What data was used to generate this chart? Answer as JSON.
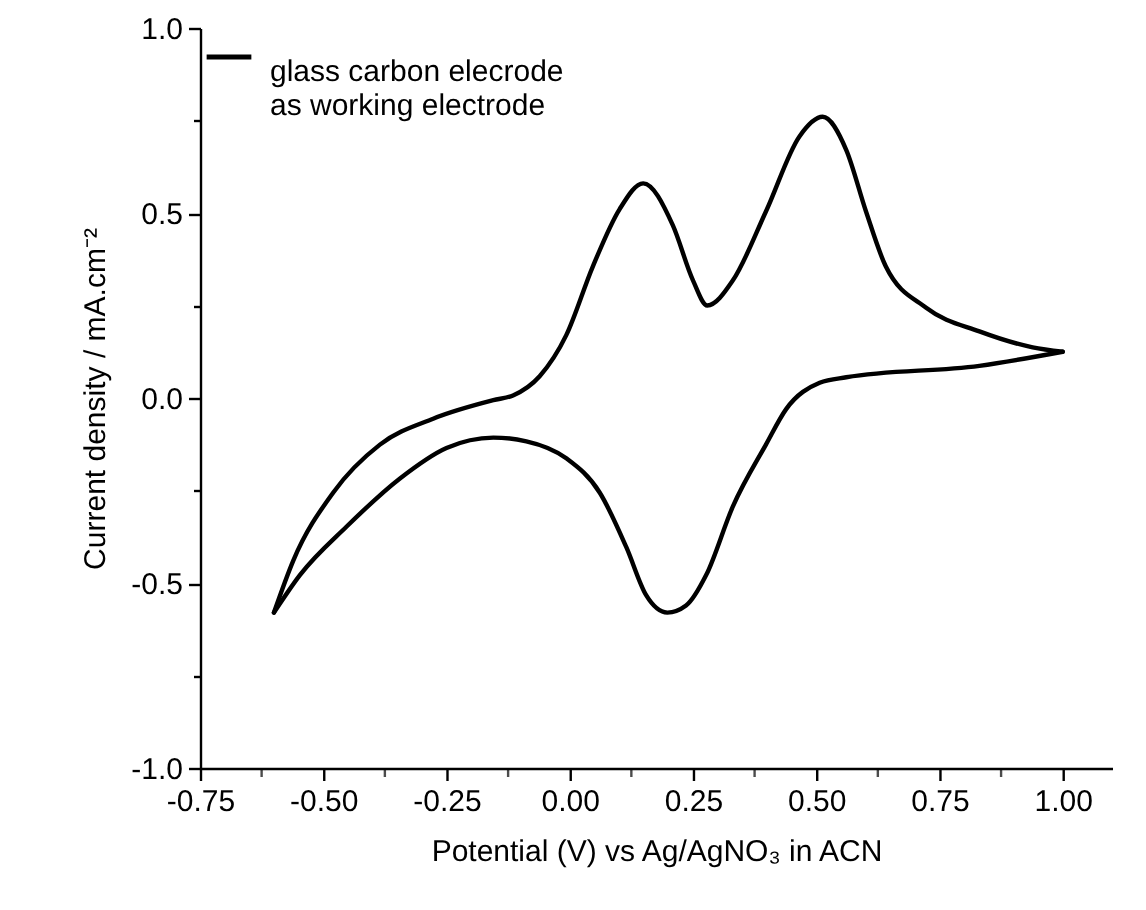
{
  "chart_data": {
    "type": "line",
    "xlabel": "Potential (V) vs Ag/AgNO₃ in ACN",
    "ylabel": "Current density / mA.cm⁻²",
    "xlim": [
      -0.75,
      1.1
    ],
    "ylim": [
      -1.0,
      1.0
    ],
    "xticks": [
      {
        "value": -0.75,
        "label": "-0.75"
      },
      {
        "value": -0.625,
        "label": null
      },
      {
        "value": -0.5,
        "label": "-0.50"
      },
      {
        "value": -0.375,
        "label": null
      },
      {
        "value": -0.25,
        "label": "-0.25"
      },
      {
        "value": -0.125,
        "label": null
      },
      {
        "value": 0,
        "label": "0.00"
      },
      {
        "value": 0.125,
        "label": null
      },
      {
        "value": 0.25,
        "label": "0.25"
      },
      {
        "value": 0.375,
        "label": null
      },
      {
        "value": 0.5,
        "label": "0.50"
      },
      {
        "value": 0.625,
        "label": null
      },
      {
        "value": 0.75,
        "label": "0.75"
      },
      {
        "value": 0.875,
        "label": null
      },
      {
        "value": 1.0,
        "label": "1.00"
      }
    ],
    "yticks": [
      {
        "value": -1.0,
        "label": "-1.0"
      },
      {
        "value": -0.75,
        "label": null
      },
      {
        "value": -0.5,
        "label": "-0.5"
      },
      {
        "value": -0.25,
        "label": null
      },
      {
        "value": 0,
        "label": "0.0"
      },
      {
        "value": 0.25,
        "label": null
      },
      {
        "value": 0.5,
        "label": "0.5"
      },
      {
        "value": 0.75,
        "label": null
      },
      {
        "value": 1.0,
        "label": "1.0"
      }
    ],
    "legend": "top left",
    "grid": false,
    "series": [
      {
        "name": "glass carbon elecrode\nas working electrode",
        "color": "#000000",
        "x": [
          -0.6,
          -0.561,
          -0.48,
          -0.385,
          -0.277,
          -0.155,
          -0.115,
          -0.061,
          -0.007,
          0.047,
          0.101,
          0.149,
          0.209,
          0.25,
          0.279,
          0.331,
          0.398,
          0.466,
          0.513,
          0.561,
          0.601,
          0.641,
          0.723,
          0.831,
          0.939,
          1.0
        ],
        "values": [
          -0.58,
          -0.44,
          -0.256,
          -0.126,
          -0.056,
          -0.006,
          0.007,
          0.059,
          0.17,
          0.356,
          0.51,
          0.58,
          0.467,
          0.318,
          0.25,
          0.318,
          0.504,
          0.707,
          0.76,
          0.67,
          0.504,
          0.356,
          0.244,
          0.18,
          0.137,
          0.125
        ]
      },
      {
        "color": "#000000",
        "x": [
          -0.6,
          -0.547,
          -0.453,
          -0.345,
          -0.25,
          -0.155,
          -0.088,
          -0.007,
          0.061,
          0.115,
          0.155,
          0.198,
          0.236,
          0.277,
          0.331,
          0.398,
          0.439,
          0.507,
          0.561,
          0.831,
          1.0
        ],
        "values": [
          -0.58,
          -0.478,
          -0.348,
          -0.218,
          -0.135,
          -0.107,
          -0.117,
          -0.163,
          -0.256,
          -0.404,
          -0.533,
          -0.58,
          -0.561,
          -0.478,
          -0.293,
          -0.126,
          -0.03,
          0.041,
          0.056,
          0.087,
          0.125
        ]
      }
    ]
  }
}
